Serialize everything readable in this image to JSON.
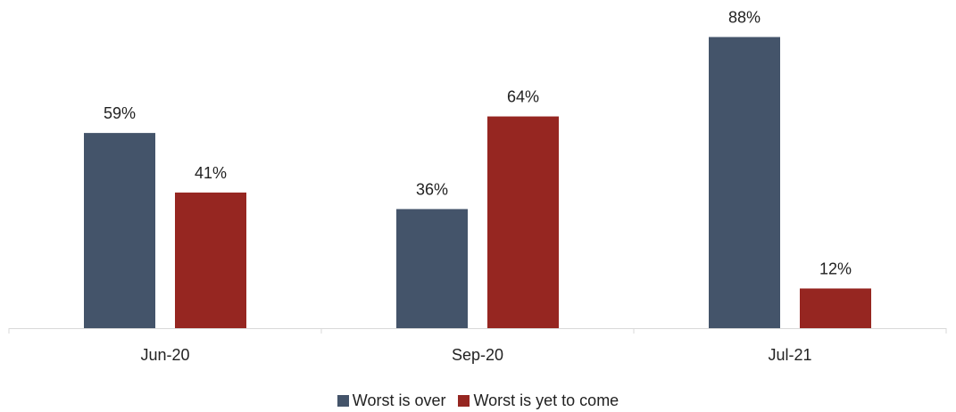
{
  "chart_data": {
    "type": "bar",
    "categories": [
      "Jun-20",
      "Sep-20",
      "Jul-21"
    ],
    "series": [
      {
        "name": "Worst is over",
        "values": [
          59,
          36,
          88
        ],
        "labels": [
          "59%",
          "36%",
          "88%"
        ],
        "color": "#44546a"
      },
      {
        "name": "Worst is yet to come",
        "values": [
          41,
          64,
          12
        ],
        "labels": [
          "41%",
          "64%",
          "12%"
        ],
        "color": "#962621"
      }
    ],
    "title": "",
    "xlabel": "",
    "ylabel": "",
    "ylim": [
      0,
      100
    ],
    "grid": false,
    "legend_position": "bottom",
    "axis_color": "#d9d9d9",
    "text_color": "#222222"
  }
}
